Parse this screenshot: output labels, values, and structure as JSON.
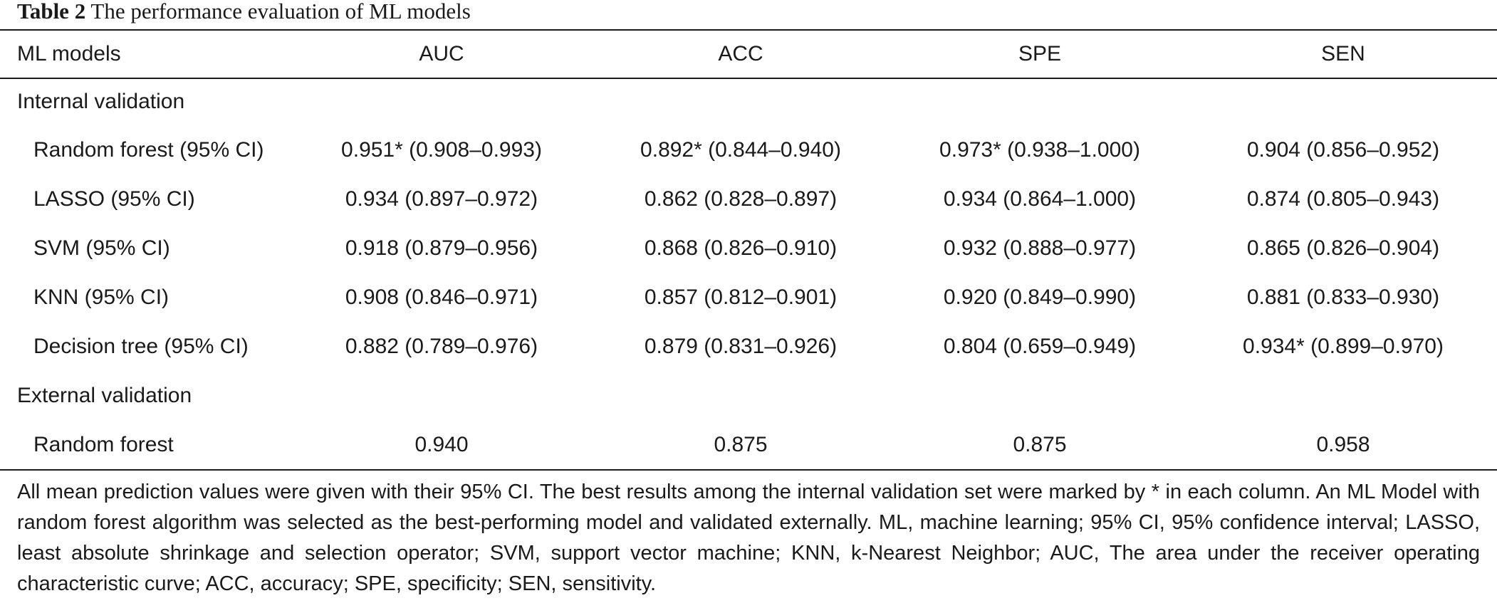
{
  "caption": {
    "label": "Table 2",
    "text": "The performance evaluation of ML models"
  },
  "table": {
    "headers": [
      "ML models",
      "AUC",
      "ACC",
      "SPE",
      "SEN"
    ],
    "sections": [
      {
        "title": "Internal validation",
        "rows": [
          {
            "model": "Random forest (95% CI)",
            "auc": "0.951* (0.908–0.993)",
            "acc": "0.892* (0.844–0.940)",
            "spe": "0.973* (0.938–1.000)",
            "sen": "0.904 (0.856–0.952)"
          },
          {
            "model": "LASSO (95% CI)",
            "auc": "0.934 (0.897–0.972)",
            "acc": "0.862 (0.828–0.897)",
            "spe": "0.934 (0.864–1.000)",
            "sen": "0.874 (0.805–0.943)"
          },
          {
            "model": "SVM (95% CI)",
            "auc": "0.918 (0.879–0.956)",
            "acc": "0.868 (0.826–0.910)",
            "spe": "0.932 (0.888–0.977)",
            "sen": "0.865 (0.826–0.904)"
          },
          {
            "model": "KNN (95% CI)",
            "auc": "0.908 (0.846–0.971)",
            "acc": "0.857 (0.812–0.901)",
            "spe": "0.920 (0.849–0.990)",
            "sen": "0.881 (0.833–0.930)"
          },
          {
            "model": "Decision tree (95% CI)",
            "auc": "0.882 (0.789–0.976)",
            "acc": "0.879 (0.831–0.926)",
            "spe": "0.804 (0.659–0.949)",
            "sen": "0.934* (0.899–0.970)"
          }
        ]
      },
      {
        "title": "External validation",
        "rows": [
          {
            "model": "Random forest",
            "auc": "0.940",
            "acc": "0.875",
            "spe": "0.875",
            "sen": "0.958"
          }
        ]
      }
    ]
  },
  "footnote": "All mean prediction values were given with their 95% CI. The best results among the internal validation set were marked by * in each column. An ML Model with random forest algorithm was selected as the best-performing model and validated externally. ML, machine learning; 95% CI, 95% confidence interval; LASSO, least absolute shrinkage and selection operator; SVM, support vector machine; KNN, k-Nearest Neighbor; AUC, The area under the receiver operating characteristic curve; ACC, accuracy; SPE, specificity; SEN, sensitivity."
}
